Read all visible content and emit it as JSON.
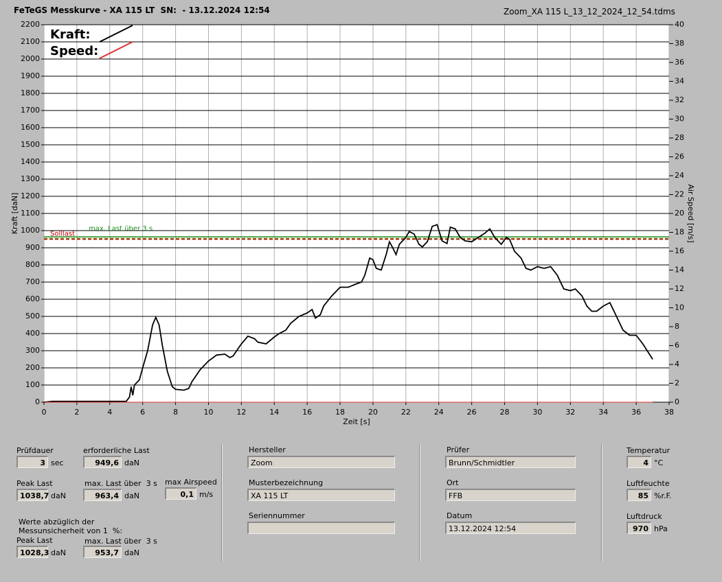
{
  "header": {
    "title": "FeTeGS Messkurve - XA 115 LT  SN:  - 13.12.2024 12:54",
    "file": "Zoom_XA 115 L_13_12_2024_12_54.tdms"
  },
  "chart_data": {
    "type": "line",
    "xlabel": "Zeit [s]",
    "ylabel": "Kraft [daN]",
    "y2label": "Air Speed [m/s]",
    "xlim": [
      0,
      38
    ],
    "xticks": [
      0,
      2,
      4,
      6,
      8,
      10,
      12,
      14,
      16,
      18,
      20,
      22,
      24,
      26,
      28,
      30,
      32,
      34,
      36,
      38
    ],
    "ylim": [
      0,
      2200
    ],
    "yticks": [
      0,
      100,
      200,
      300,
      400,
      500,
      600,
      700,
      800,
      900,
      1000,
      1100,
      1200,
      1300,
      1400,
      1500,
      1600,
      1700,
      1800,
      1900,
      2000,
      2100,
      2200
    ],
    "y2lim": [
      0,
      40
    ],
    "y2ticks": [
      0,
      2,
      4,
      6,
      8,
      10,
      12,
      14,
      16,
      18,
      20,
      22,
      24,
      26,
      28,
      30,
      32,
      34,
      36,
      38,
      40
    ],
    "grid": true,
    "reference_lines": [
      {
        "label": "Solllast",
        "value": 949.6,
        "color": "#c00000",
        "dash": true
      },
      {
        "label": "max. Last über  3 s",
        "value": 963.4,
        "color": "#1e8c1e",
        "dash": false
      },
      {
        "value": 953.7,
        "color": "#806000",
        "dash": true
      }
    ],
    "series": [
      {
        "name": "Kraft:",
        "color": "#000000",
        "x": [
          0,
          0.5,
          5.0,
          5.2,
          5.3,
          5.4,
          5.5,
          5.8,
          6.0,
          6.3,
          6.6,
          6.8,
          7.0,
          7.2,
          7.5,
          7.8,
          8.0,
          8.5,
          8.8,
          9.0,
          9.5,
          10.0,
          10.5,
          11.0,
          11.3,
          11.5,
          12.0,
          12.4,
          12.8,
          13.0,
          13.5,
          14.0,
          14.3,
          14.7,
          15.0,
          15.5,
          16.0,
          16.3,
          16.5,
          16.8,
          17.0,
          17.5,
          18.0,
          18.5,
          19.0,
          19.3,
          19.5,
          19.8,
          20.0,
          20.2,
          20.5,
          20.8,
          21.0,
          21.2,
          21.4,
          21.6,
          22.0,
          22.2,
          22.5,
          22.8,
          23.0,
          23.3,
          23.6,
          23.9,
          24.2,
          24.5,
          24.7,
          25.0,
          25.3,
          25.6,
          26.0,
          26.4,
          26.8,
          27.1,
          27.4,
          27.8,
          28.1,
          28.3,
          28.6,
          29.0,
          29.3,
          29.6,
          30.0,
          30.4,
          30.8,
          31.2,
          31.6,
          32.0,
          32.3,
          32.7,
          33.0,
          33.3,
          33.6,
          34.0,
          34.4,
          34.8,
          35.2,
          35.6,
          36.0,
          36.4,
          36.8,
          37.0
        ],
        "values": [
          0,
          5,
          5,
          30,
          90,
          40,
          100,
          130,
          200,
          300,
          450,
          495,
          450,
          330,
          180,
          90,
          75,
          70,
          80,
          120,
          190,
          240,
          275,
          280,
          260,
          270,
          340,
          385,
          370,
          350,
          340,
          380,
          400,
          420,
          460,
          500,
          520,
          540,
          490,
          510,
          560,
          620,
          670,
          670,
          690,
          700,
          740,
          840,
          830,
          780,
          770,
          860,
          935,
          900,
          860,
          920,
          960,
          995,
          980,
          920,
          905,
          935,
          1025,
          1035,
          940,
          925,
          1020,
          1010,
          960,
          940,
          935,
          960,
          985,
          1010,
          960,
          920,
          960,
          950,
          880,
          840,
          780,
          770,
          790,
          780,
          790,
          740,
          660,
          650,
          660,
          620,
          560,
          530,
          530,
          560,
          580,
          500,
          420,
          390,
          390,
          340,
          280,
          250
        ]
      },
      {
        "name": "Speed:",
        "color": "#e03030",
        "axis": "y2",
        "x": [
          0,
          37
        ],
        "values": [
          0,
          0
        ]
      }
    ]
  },
  "panel": {
    "note": [
      "Werte abzüglich der",
      "Messunsicherheit von 1  %:"
    ],
    "fields": [
      {
        "label": "Prüfdauer",
        "value": "3",
        "unit": "sec"
      },
      {
        "label": "erforderliche Last",
        "value": "949,6",
        "unit": "daN"
      },
      {
        "label": "Peak Last",
        "value": "1038,7",
        "unit": "daN"
      },
      {
        "label": "max. Last über  3 s",
        "value": "963,4",
        "unit": "daN"
      },
      {
        "label": "max Airspeed",
        "value": "0,1",
        "unit": "m/s"
      },
      {
        "label": "Peak Last",
        "value": "1028,3",
        "unit": "daN"
      },
      {
        "label": "max. Last über  3 s",
        "value": "953,7",
        "unit": "daN"
      },
      {
        "label": "Hersteller",
        "value": "Zoom"
      },
      {
        "label": "Musterbezeichnung",
        "value": "XA 115 LT"
      },
      {
        "label": "Seriennummer"
      },
      {
        "label": "Prüfer",
        "value": "Brunn/Schmidtler"
      },
      {
        "label": "Ort",
        "value": "FFB"
      },
      {
        "label": "Datum",
        "value": "13.12.2024 12:54"
      },
      {
        "label": "Temperatur",
        "value": "4",
        "unit": "°C"
      },
      {
        "label": "Luftfeuchte",
        "value": "85",
        "unit": "%r.F."
      },
      {
        "label": "Luftdruck",
        "value": "970",
        "unit": "hPa"
      }
    ]
  }
}
